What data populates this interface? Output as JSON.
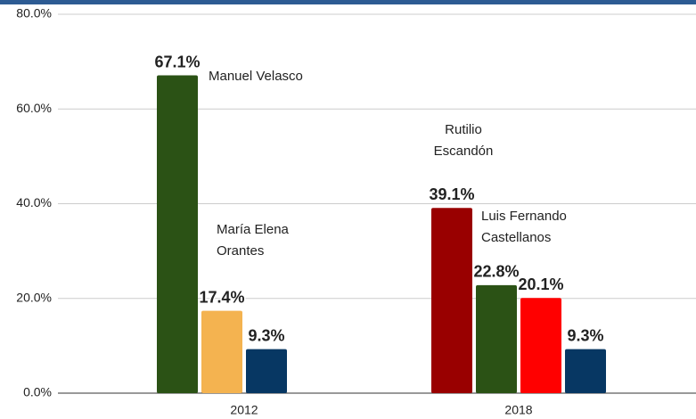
{
  "chart_data": {
    "type": "bar",
    "categories": [
      "2012",
      "2018"
    ],
    "series": [
      {
        "values": [
          67.1,
          39.1
        ],
        "value_labels": [
          "67.1%",
          "39.1%"
        ],
        "colors": [
          "#2b5215",
          "#990000"
        ]
      },
      {
        "values": [
          17.4,
          22.8
        ],
        "value_labels": [
          "17.4%",
          "22.8%"
        ],
        "colors": [
          "#f4b350",
          "#2b5215"
        ]
      },
      {
        "values": [
          9.3,
          20.1
        ],
        "value_labels": [
          "9.3%",
          "20.1%"
        ],
        "colors": [
          "#073763",
          "#ff0000"
        ]
      },
      {
        "values": [
          null,
          9.3
        ],
        "value_labels": [
          null,
          "9.3%"
        ],
        "colors": [
          null,
          "#073763"
        ]
      }
    ],
    "ylim": [
      0,
      80
    ],
    "yticks": [
      {
        "value": 0,
        "label": "0.0%"
      },
      {
        "value": 20,
        "label": "20.0%"
      },
      {
        "value": 40,
        "label": "40.0%"
      },
      {
        "value": 60,
        "label": "60.0%"
      },
      {
        "value": 80,
        "label": "80.0%"
      }
    ],
    "grid": true,
    "annotations": [
      {
        "lines": [
          "Manuel Velasco"
        ]
      },
      {
        "lines": [
          "María Elena",
          "Orantes"
        ]
      },
      {
        "lines": [
          "Rutilio",
          "Escandón"
        ]
      },
      {
        "lines": [
          "Luis Fernando",
          "Castellanos"
        ]
      }
    ]
  }
}
